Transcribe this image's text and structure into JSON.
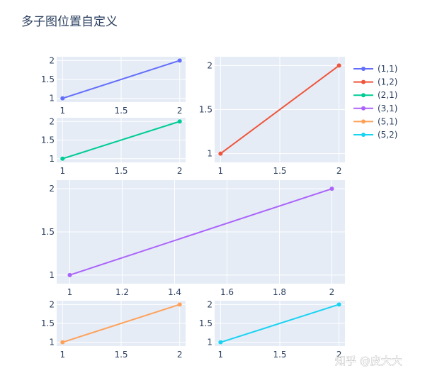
{
  "chart_title": "多子图位置自定义",
  "watermark": "知乎 @皮大大",
  "chart_data": [
    {
      "id": "p11",
      "type": "line",
      "series": [
        {
          "name": "(1,1)",
          "x": [
            1,
            2
          ],
          "y": [
            1,
            2
          ],
          "color": "#636efa"
        }
      ],
      "xticks": [
        "1",
        "1.5",
        "2"
      ],
      "yticks": [
        "1",
        "1.5",
        "2"
      ],
      "xlim": [
        0.95,
        2.05
      ],
      "ylim": [
        0.9,
        2.1
      ]
    },
    {
      "id": "p12",
      "type": "line",
      "series": [
        {
          "name": "(1,2)",
          "x": [
            1,
            2
          ],
          "y": [
            1,
            2
          ],
          "color": "#EF553B"
        }
      ],
      "xticks": [
        "1",
        "1.5",
        "2"
      ],
      "yticks": [
        "1",
        "1.5",
        "2"
      ],
      "xlim": [
        0.95,
        2.05
      ],
      "ylim": [
        0.9,
        2.1
      ]
    },
    {
      "id": "p21",
      "type": "line",
      "series": [
        {
          "name": "(2,1)",
          "x": [
            1,
            2
          ],
          "y": [
            1,
            2
          ],
          "color": "#00cc96"
        }
      ],
      "xticks": [
        "1",
        "1.5",
        "2"
      ],
      "yticks": [
        "1",
        "1.5",
        "2"
      ],
      "xlim": [
        0.95,
        2.05
      ],
      "ylim": [
        0.9,
        2.1
      ]
    },
    {
      "id": "p31",
      "type": "line",
      "series": [
        {
          "name": "(3,1)",
          "x": [
            1,
            2
          ],
          "y": [
            1,
            2
          ],
          "color": "#ab63fa"
        }
      ],
      "xticks": [
        "1",
        "1.2",
        "1.4",
        "1.6",
        "1.8",
        "2"
      ],
      "yticks": [
        "1",
        "1.5",
        "2"
      ],
      "xlim": [
        0.95,
        2.05
      ],
      "ylim": [
        0.9,
        2.1
      ]
    },
    {
      "id": "p51",
      "type": "line",
      "series": [
        {
          "name": "(5,1)",
          "x": [
            1,
            2
          ],
          "y": [
            1,
            2
          ],
          "color": "#FFA15A"
        }
      ],
      "xticks": [
        "1",
        "1.5",
        "2"
      ],
      "yticks": [
        "1",
        "1.5",
        "2"
      ],
      "xlim": [
        0.95,
        2.05
      ],
      "ylim": [
        0.9,
        2.1
      ]
    },
    {
      "id": "p52",
      "type": "line",
      "series": [
        {
          "name": "(5,2)",
          "x": [
            1,
            2
          ],
          "y": [
            1,
            2
          ],
          "color": "#19d3f3"
        }
      ],
      "xticks": [
        "1",
        "1.5",
        "2"
      ],
      "yticks": [
        "1",
        "1.5",
        "2"
      ],
      "xlim": [
        0.95,
        2.05
      ],
      "ylim": [
        0.9,
        2.1
      ]
    }
  ],
  "legend": {
    "placement": "right",
    "items": [
      {
        "label": "(1,1)",
        "color": "#636efa"
      },
      {
        "label": "(1,2)",
        "color": "#EF553B"
      },
      {
        "label": "(2,1)",
        "color": "#00cc96"
      },
      {
        "label": "(3,1)",
        "color": "#ab63fa"
      },
      {
        "label": "(5,1)",
        "color": "#FFA15A"
      },
      {
        "label": "(5,2)",
        "color": "#19d3f3"
      }
    ]
  }
}
